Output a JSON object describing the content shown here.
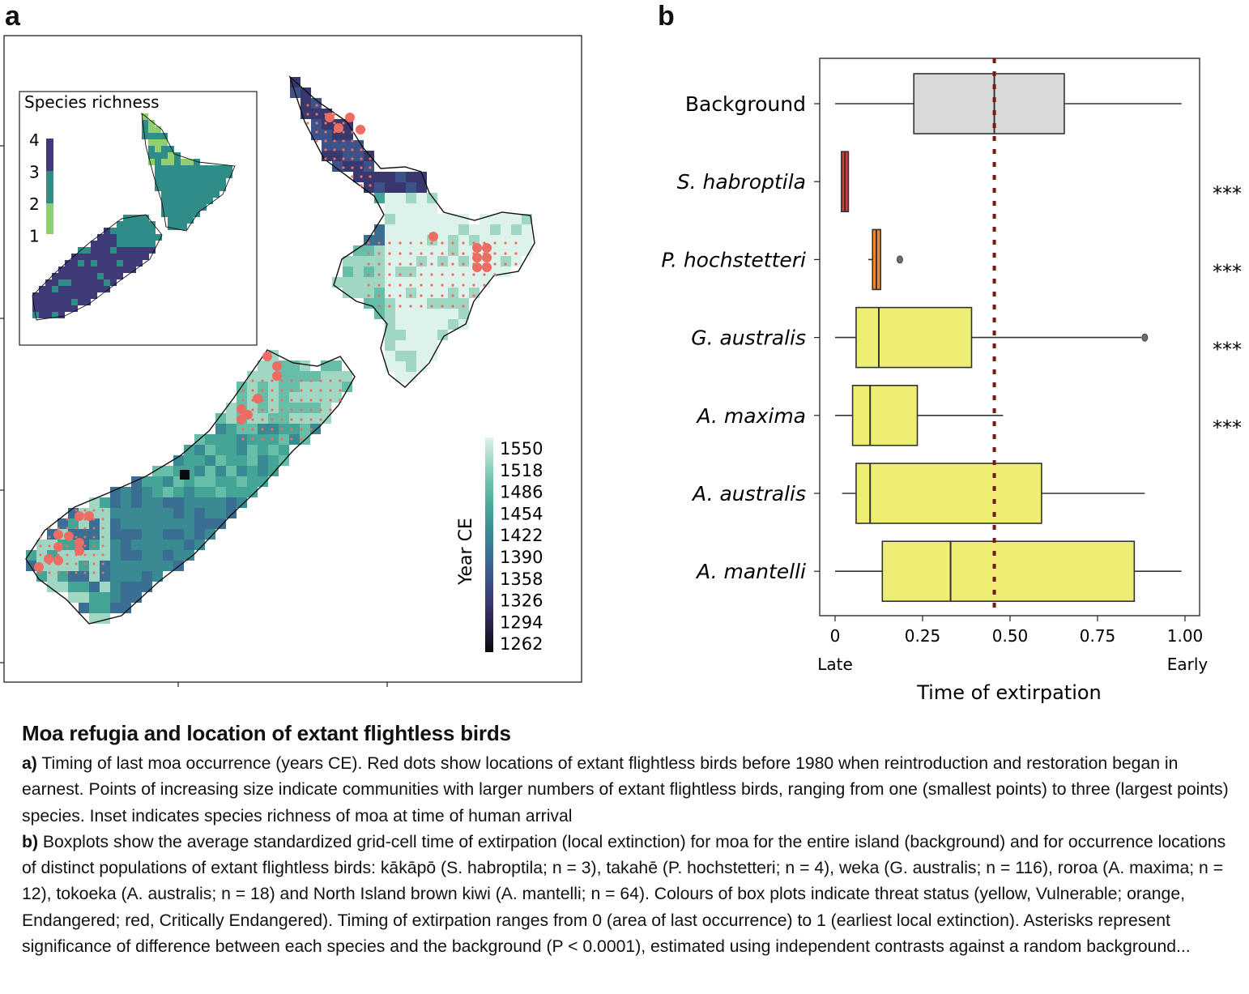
{
  "panel_a": {
    "letter": "a",
    "inset_title": "Species richness",
    "inset_legend": [
      "4",
      "3",
      "2",
      "1"
    ],
    "inset_colors": [
      "#3f3a78",
      "#3d4e8c",
      "#2f8c87",
      "#8fcf6e"
    ],
    "colorbar_title": "Year CE",
    "colorbar_ticks": [
      "1550",
      "1518",
      "1486",
      "1454",
      "1422",
      "1390",
      "1358",
      "1326",
      "1294",
      "1262"
    ],
    "colorbar_colors": [
      "#ddf2ea",
      "#9fd7c2",
      "#66bea9",
      "#44a597",
      "#3a8a94",
      "#3b6e93",
      "#3c5288",
      "#38386e",
      "#261f44",
      "#0c0a0e"
    ],
    "dot_color": "#ec6d63"
  },
  "panel_b": {
    "letter": "b",
    "xlabel": "Time of extirpation",
    "xlabel_left": "Late",
    "xlabel_right": "Early",
    "significance": "***"
  },
  "chart_data": {
    "type": "box",
    "orientation": "horizontal",
    "xlabel": "Time of extirpation",
    "xlim": [
      -0.05,
      1.04
    ],
    "xticks": [
      0,
      0.25,
      0.5,
      0.75,
      1.0
    ],
    "xtick_labels": [
      "0",
      "0.25",
      "0.50",
      "0.75",
      "1.00"
    ],
    "reference_line": {
      "x": 0.455,
      "style": "dotted",
      "color": "#7a1717"
    },
    "categories": [
      "Background",
      "S. habroptila",
      "P. hochstetteri",
      "G. australis",
      "A. maxima",
      "A. australis",
      "A. mantelli"
    ],
    "series": [
      {
        "name": "Background",
        "whisker_low": 0.0,
        "q1": 0.225,
        "median": 0.455,
        "q3": 0.655,
        "whisker_high": 0.99,
        "outliers": [],
        "color": "#d9d9d9",
        "significant": false
      },
      {
        "name": "S. habroptila",
        "whisker_low": 0.018,
        "q1": 0.018,
        "median": 0.028,
        "q3": 0.038,
        "whisker_high": 0.038,
        "outliers": [],
        "color": "#d93a3a",
        "significant": true
      },
      {
        "name": "P. hochstetteri",
        "whisker_low": 0.095,
        "q1": 0.107,
        "median": 0.118,
        "q3": 0.13,
        "whisker_high": 0.13,
        "outliers": [
          0.185
        ],
        "color": "#f0872e",
        "significant": true
      },
      {
        "name": "G. australis",
        "whisker_low": 0.0,
        "q1": 0.06,
        "median": 0.125,
        "q3": 0.39,
        "whisker_high": 0.875,
        "outliers": [
          0.885
        ],
        "color": "#efee74",
        "significant": true
      },
      {
        "name": "A. maxima",
        "whisker_low": 0.0,
        "q1": 0.05,
        "median": 0.1,
        "q3": 0.235,
        "whisker_high": 0.48,
        "outliers": [],
        "color": "#efee74",
        "significant": true
      },
      {
        "name": "A. australis",
        "whisker_low": 0.02,
        "q1": 0.06,
        "median": 0.1,
        "q3": 0.59,
        "whisker_high": 0.885,
        "outliers": [],
        "color": "#efee74",
        "significant": false
      },
      {
        "name": "A. mantelli",
        "whisker_low": 0.0,
        "q1": 0.135,
        "median": 0.33,
        "q3": 0.855,
        "whisker_high": 0.99,
        "outliers": [],
        "color": "#efee74",
        "significant": false
      }
    ]
  },
  "caption": {
    "title": "Moa refugia and location of extant flightless birds",
    "a_label": "a)",
    "a_text": " Timing of last moa occurrence (years CE). Red dots show locations of extant flightless birds before 1980 when reintroduction and restoration began in earnest. Points of increasing size indicate communities with larger numbers of extant flightless birds, ranging from one (smallest points) to three (largest points) species. Inset indicates species richness of moa at time of human arrival",
    "b_label": "b)",
    "b_text": " Boxplots show the average standardized grid-cell time of extirpation (local extinction) for moa for the entire island (background) and for occurrence locations of distinct populations of extant flightless birds: kākāpō (S. habroptila; n = 3), takahē (P. hochstetteri; n = 4), weka (G. australis; n = 116), roroa (A. maxima; n = 12), tokoeka (A. australis; n = 18) and North Island brown kiwi (A. mantelli; n = 64). Colours of box plots indicate threat status (yellow, Vulnerable; orange, Endangered; red, Critically Endangered). Timing of extirpation ranges from 0 (area of last occurrence) to 1 (earliest local extinction). Asterisks represent significance of difference between each species and the background (P < 0.0001), estimated using independent contrasts against a random background..."
  }
}
